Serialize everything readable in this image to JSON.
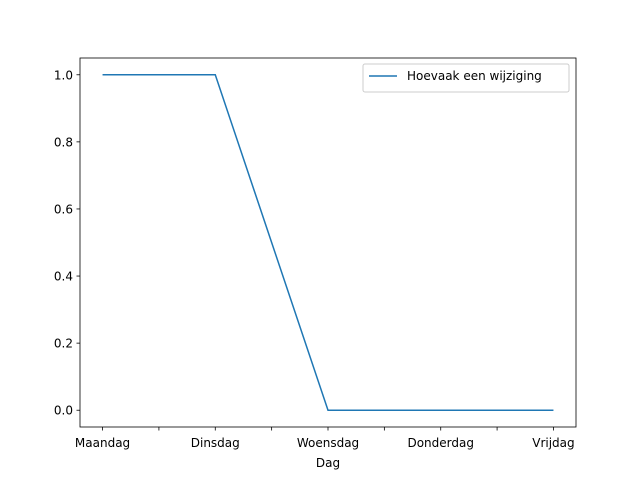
{
  "chart_data": {
    "type": "line",
    "categories": [
      "Maandag",
      "Dinsdag",
      "Woensdag",
      "Donderdag",
      "Vrijdag"
    ],
    "series": [
      {
        "name": "Hoevaak een wijziging",
        "values": [
          1.0,
          1.0,
          0.0,
          0.0,
          0.0
        ],
        "color": "#1f77b4"
      }
    ],
    "xlabel": "Dag",
    "ylabel": "",
    "ylim": [
      -0.05,
      1.05
    ],
    "yticks": [
      0.0,
      0.2,
      0.4,
      0.6,
      0.8,
      1.0
    ],
    "ytick_labels": [
      "0.0",
      "0.2",
      "0.4",
      "0.6",
      "0.8",
      "1.0"
    ],
    "xlim": [
      -0.2,
      4.2
    ],
    "minor_xticks": [
      0.5,
      1.5,
      2.5,
      3.5
    ],
    "grid": false,
    "legend_position": "top-right"
  }
}
